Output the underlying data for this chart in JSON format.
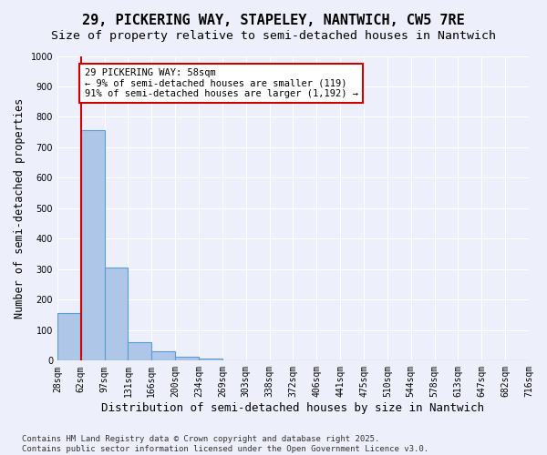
{
  "title1": "29, PICKERING WAY, STAPELEY, NANTWICH, CW5 7RE",
  "title2": "Size of property relative to semi-detached houses in Nantwich",
  "xlabel": "Distribution of semi-detached houses by size in Nantwich",
  "ylabel": "Number of semi-detached properties",
  "bins": [
    "28sqm",
    "62sqm",
    "97sqm",
    "131sqm",
    "166sqm",
    "200sqm",
    "234sqm",
    "269sqm",
    "303sqm",
    "338sqm",
    "372sqm",
    "406sqm",
    "441sqm",
    "475sqm",
    "510sqm",
    "544sqm",
    "578sqm",
    "613sqm",
    "647sqm",
    "682sqm",
    "716sqm"
  ],
  "values": [
    155,
    758,
    305,
    62,
    30,
    12,
    8,
    0,
    0,
    0,
    0,
    0,
    0,
    0,
    0,
    0,
    0,
    0,
    0,
    0
  ],
  "bar_color": "#aec6e8",
  "bar_edge_color": "#5a9fd4",
  "vline_color": "#cc0000",
  "annotation_text": "29 PICKERING WAY: 58sqm\n← 9% of semi-detached houses are smaller (119)\n91% of semi-detached houses are larger (1,192) →",
  "annotation_box_color": "#ffffff",
  "annotation_box_edge_color": "#cc0000",
  "ylim": [
    0,
    1000
  ],
  "yticks": [
    0,
    100,
    200,
    300,
    400,
    500,
    600,
    700,
    800,
    900,
    1000
  ],
  "bg_color": "#edf0fa",
  "plot_bg_color": "#edf0fa",
  "footer": "Contains HM Land Registry data © Crown copyright and database right 2025.\nContains public sector information licensed under the Open Government Licence v3.0.",
  "title1_fontsize": 11,
  "title2_fontsize": 9.5,
  "xlabel_fontsize": 9,
  "ylabel_fontsize": 8.5,
  "tick_fontsize": 7,
  "footer_fontsize": 6.5
}
